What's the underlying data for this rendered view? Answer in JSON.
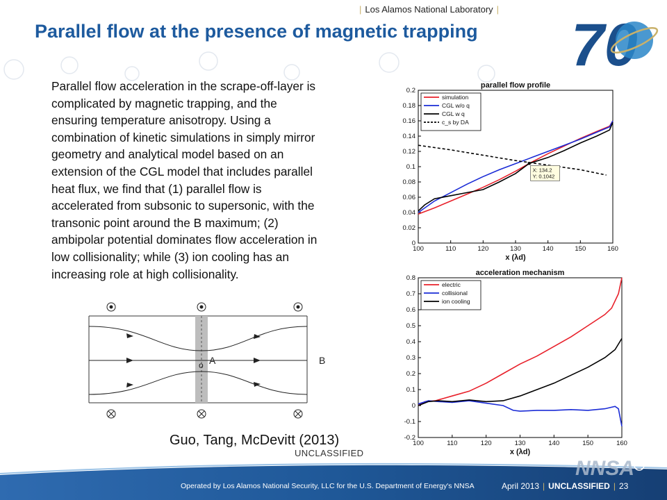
{
  "header": {
    "lab_name": "Los Alamos National Laboratory",
    "title": "Parallel flow at the presence of magnetic trapping"
  },
  "body": {
    "lines": [
      "Parallel flow acceleration in the scrape-off-layer is",
      "complicated by magnetic trapping, and the",
      "ensuring temperature anisotropy. Using a",
      "combination of kinetic simulations in simply mirror",
      "geometry and analytical model based on an",
      "extension of the CGL model that includes parallel",
      "heat flux, we find that (1) parallel flow is",
      "accelerated from subsonic to supersonic, with the",
      "transonic point around the B maximum; (2)",
      "ambipolar potential dominates flow acceleration in",
      "low collisionality; while (3) ion cooling has an",
      "increasing role at high collisionality."
    ],
    "citation": "Guo, Tang, McDevitt (2013)",
    "classification": "UNCLASSIFIED"
  },
  "schematic": {
    "label_A": "A",
    "label_B": "B",
    "label_O": "o"
  },
  "footer": {
    "operator": "Operated by Los Alamos National Security, LLC for the U.S. Department of Energy's NNSA",
    "date": "April 2013",
    "classification": "UNCLASSIFIED",
    "page": "23"
  },
  "logos": {
    "anniversary": "70",
    "agency": "NNSA"
  },
  "colors": {
    "title_blue": "#1d5a9e",
    "footer_blue": "#1b4f8c",
    "gold": "#c9b16a"
  },
  "chart_data": [
    {
      "type": "line",
      "title": "parallel flow profile",
      "xlabel": "x (λd)",
      "ylabel": "",
      "xlim": [
        100,
        160
      ],
      "ylim": [
        0,
        0.2
      ],
      "xticks": [
        100,
        110,
        120,
        130,
        140,
        150,
        160
      ],
      "yticks": [
        0,
        0.02,
        0.04,
        0.06,
        0.08,
        0.1,
        0.12,
        0.14,
        0.16,
        0.18,
        0.2
      ],
      "legend_position": "top-left",
      "series": [
        {
          "name": "simulation",
          "color": "#e8202a",
          "style": "solid",
          "x": [
            100,
            105,
            110,
            115,
            120,
            125,
            130,
            135,
            140,
            145,
            150,
            155,
            159,
            160
          ],
          "y": [
            0.038,
            0.046,
            0.055,
            0.064,
            0.073,
            0.083,
            0.094,
            0.106,
            0.117,
            0.127,
            0.137,
            0.146,
            0.153,
            0.16
          ]
        },
        {
          "name": "CGL w/o q",
          "color": "#1a2bd6",
          "style": "solid",
          "x": [
            100,
            105,
            110,
            115,
            120,
            125,
            130,
            135,
            140,
            145,
            150,
            155,
            159,
            160
          ],
          "y": [
            0.04,
            0.055,
            0.066,
            0.077,
            0.087,
            0.096,
            0.104,
            0.112,
            0.12,
            0.128,
            0.136,
            0.145,
            0.152,
            0.16
          ]
        },
        {
          "name": "CGL w q",
          "color": "#000000",
          "style": "solid",
          "x": [
            100,
            102,
            105,
            110,
            115,
            120,
            125,
            130,
            134.2,
            140,
            145,
            150,
            155,
            159,
            160
          ],
          "y": [
            0.042,
            0.05,
            0.058,
            0.062,
            0.066,
            0.07,
            0.08,
            0.091,
            0.1042,
            0.112,
            0.121,
            0.131,
            0.14,
            0.148,
            0.158
          ]
        },
        {
          "name": "c_s by DA",
          "color": "#000000",
          "style": "dashed",
          "x": [
            100,
            110,
            120,
            130,
            140,
            150,
            158
          ],
          "y": [
            0.128,
            0.122,
            0.115,
            0.108,
            0.102,
            0.096,
            0.089
          ]
        }
      ],
      "annotations": [
        {
          "x": 134.2,
          "y": 0.1042,
          "lines": [
            "X: 134.2",
            "Y: 0.1042"
          ]
        }
      ]
    },
    {
      "type": "line",
      "title": "acceleration mechanism",
      "xlabel": "x (λd)",
      "ylabel": "",
      "xlim": [
        100,
        160
      ],
      "ylim": [
        -0.2,
        0.8
      ],
      "xticks": [
        100,
        110,
        120,
        130,
        140,
        150,
        160
      ],
      "yticks": [
        -0.2,
        -0.1,
        0,
        0.1,
        0.2,
        0.3,
        0.4,
        0.5,
        0.6,
        0.7,
        0.8
      ],
      "legend_position": "top-left",
      "series": [
        {
          "name": "electric",
          "color": "#e8202a",
          "style": "solid",
          "x": [
            100,
            102,
            105,
            110,
            115,
            120,
            125,
            130,
            135,
            140,
            145,
            150,
            155,
            157,
            159,
            160
          ],
          "y": [
            0.0,
            0.025,
            0.03,
            0.06,
            0.09,
            0.14,
            0.2,
            0.26,
            0.31,
            0.37,
            0.43,
            0.5,
            0.57,
            0.61,
            0.7,
            0.8
          ]
        },
        {
          "name": "collisional",
          "color": "#1a2bd6",
          "style": "solid",
          "x": [
            100,
            103,
            106,
            110,
            115,
            120,
            125,
            128,
            130,
            135,
            140,
            145,
            150,
            155,
            158,
            159,
            160
          ],
          "y": [
            0.01,
            0.03,
            0.025,
            0.02,
            0.03,
            0.015,
            0.0,
            -0.03,
            -0.035,
            -0.03,
            -0.03,
            -0.025,
            -0.03,
            -0.02,
            -0.005,
            -0.02,
            -0.13
          ]
        },
        {
          "name": "ion cooling",
          "color": "#000000",
          "style": "solid",
          "x": [
            100,
            103,
            106,
            110,
            115,
            120,
            125,
            130,
            135,
            140,
            145,
            150,
            155,
            158,
            160
          ],
          "y": [
            0.0,
            0.025,
            0.03,
            0.025,
            0.035,
            0.025,
            0.03,
            0.06,
            0.1,
            0.14,
            0.19,
            0.24,
            0.3,
            0.35,
            0.42
          ]
        }
      ]
    }
  ]
}
